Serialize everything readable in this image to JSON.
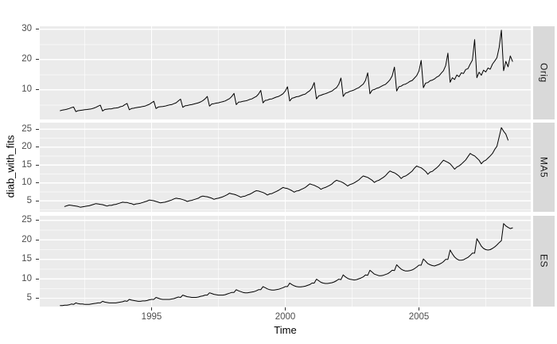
{
  "colors": {
    "background": "#FFFFFF",
    "panel_bg": "#EBEBEB",
    "strip_bg": "#D9D9D9",
    "grid_major": "#FFFFFF",
    "grid_minor": "rgba(255,255,255,0.6)",
    "line": "#000000",
    "tick_text": "#4D4D4D",
    "title_text": "#000000",
    "strip_text": "#1A1A1A"
  },
  "chart_data": {
    "type": "line",
    "title": "",
    "xlabel": "Time",
    "ylabel": "diab_with_fits",
    "legend": "none",
    "grid": "on",
    "facet_layout": "rows",
    "x_start_year": 1991.5833,
    "points_per_year": 12,
    "x_axis": {
      "label": "Time",
      "ticks": [
        1995,
        2000,
        2005
      ],
      "minor_ticks": [
        1992.5,
        1997.5,
        2002.5,
        2007.5
      ],
      "lim": [
        1990.82,
        2009.18
      ]
    },
    "facets": [
      {
        "label": "Orig",
        "y_ticks": [
          10,
          20,
          30
        ],
        "y_minor": [
          5,
          15,
          25
        ],
        "ylim": [
          0.2,
          31.0
        ],
        "offset_months": 0,
        "values": [
          3.1,
          3.3,
          3.4,
          3.6,
          3.8,
          4.1,
          4.3,
          2.8,
          3.1,
          3.2,
          3.3,
          3.4,
          3.5,
          3.6,
          3.7,
          3.9,
          4.2,
          4.6,
          4.9,
          3.0,
          3.5,
          3.6,
          3.7,
          3.7,
          3.9,
          4.0,
          4.1,
          4.4,
          4.6,
          5.1,
          5.5,
          3.4,
          3.8,
          3.9,
          4.1,
          4.2,
          4.3,
          4.5,
          4.6,
          4.9,
          5.2,
          5.7,
          6.2,
          3.8,
          4.3,
          4.4,
          4.5,
          4.6,
          4.8,
          5.0,
          5.1,
          5.4,
          5.7,
          6.3,
          6.9,
          4.2,
          4.7,
          4.8,
          5.0,
          5.1,
          5.3,
          5.5,
          5.7,
          6.0,
          6.4,
          7.0,
          7.8,
          4.6,
          5.3,
          5.4,
          5.6,
          5.7,
          5.9,
          6.1,
          6.3,
          6.7,
          7.1,
          7.8,
          8.8,
          5.1,
          5.9,
          6.0,
          6.2,
          6.3,
          6.5,
          6.8,
          7.0,
          7.4,
          7.8,
          8.6,
          9.8,
          5.7,
          6.5,
          6.6,
          6.9,
          7.0,
          7.3,
          7.6,
          7.8,
          8.2,
          8.7,
          9.6,
          11.0,
          6.3,
          7.2,
          7.4,
          7.7,
          7.8,
          8.1,
          8.4,
          8.6,
          9.2,
          9.7,
          10.6,
          12.4,
          7.0,
          8.0,
          8.2,
          8.5,
          8.7,
          9.0,
          9.3,
          9.6,
          10.2,
          10.7,
          11.8,
          13.9,
          7.8,
          8.9,
          9.1,
          9.5,
          9.7,
          10.0,
          10.4,
          10.7,
          11.3,
          11.9,
          13.1,
          15.6,
          8.7,
          9.9,
          10.1,
          10.5,
          10.7,
          11.1,
          11.5,
          11.8,
          12.5,
          13.3,
          14.6,
          17.5,
          9.6,
          11.0,
          11.2,
          11.7,
          11.9,
          12.3,
          12.8,
          13.1,
          13.9,
          14.7,
          16.2,
          19.7,
          10.7,
          12.2,
          12.4,
          13.0,
          13.2,
          13.6,
          14.2,
          14.6,
          15.5,
          16.3,
          18.0,
          22.1,
          12.5,
          14.0,
          13.4,
          14.9,
          14.3,
          15.6,
          15.4,
          16.7,
          17.0,
          18.5,
          19.8,
          26.6,
          14.0,
          15.8,
          14.8,
          16.5,
          15.9,
          17.2,
          16.8,
          18.5,
          19.5,
          20.6,
          24.0,
          29.7,
          16.3,
          19.4,
          17.6,
          21.2,
          19.4
        ]
      },
      {
        "label": "MA5",
        "y_ticks": [
          5,
          10,
          15,
          20,
          25
        ],
        "y_minor": [
          2.5,
          7.5,
          12.5,
          17.5,
          22.5
        ],
        "ylim": [
          1.9,
          26.8
        ],
        "offset_months": 2,
        "values": [
          3.4,
          3.6,
          3.8,
          3.7,
          3.6,
          3.5,
          3.4,
          3.2,
          3.3,
          3.4,
          3.5,
          3.6,
          3.8,
          4.0,
          4.2,
          4.1,
          4.0,
          3.9,
          3.7,
          3.5,
          3.7,
          3.7,
          3.9,
          4.0,
          4.2,
          4.4,
          4.6,
          4.5,
          4.5,
          4.3,
          4.2,
          3.9,
          4.1,
          4.2,
          4.3,
          4.5,
          4.7,
          4.9,
          5.2,
          5.1,
          5.0,
          4.8,
          4.6,
          4.4,
          4.5,
          4.6,
          4.8,
          5.0,
          5.2,
          5.5,
          5.7,
          5.6,
          5.5,
          5.3,
          5.1,
          4.8,
          5.0,
          5.1,
          5.3,
          5.5,
          5.7,
          6.1,
          6.3,
          6.2,
          6.1,
          5.9,
          5.7,
          5.4,
          5.6,
          5.7,
          5.9,
          6.1,
          6.4,
          6.7,
          7.1,
          6.9,
          6.8,
          6.6,
          6.3,
          6.0,
          6.2,
          6.3,
          6.6,
          6.8,
          7.1,
          7.5,
          7.8,
          7.7,
          7.5,
          7.3,
          7.0,
          6.6,
          6.9,
          7.0,
          7.3,
          7.6,
          7.9,
          8.3,
          8.7,
          8.5,
          8.4,
          8.1,
          7.8,
          7.4,
          7.7,
          7.8,
          8.1,
          8.4,
          8.7,
          9.2,
          9.7,
          9.5,
          9.3,
          9.0,
          8.7,
          8.2,
          8.5,
          8.7,
          9.0,
          9.3,
          9.7,
          10.3,
          10.7,
          10.5,
          10.3,
          10.0,
          9.6,
          9.1,
          9.5,
          9.7,
          10.0,
          10.4,
          10.8,
          11.4,
          11.9,
          11.7,
          11.5,
          11.1,
          10.7,
          10.1,
          10.5,
          10.7,
          11.1,
          11.5,
          12.0,
          12.7,
          13.3,
          13.0,
          12.8,
          12.4,
          11.9,
          11.2,
          11.7,
          11.9,
          12.3,
          12.8,
          13.3,
          14.1,
          14.7,
          14.4,
          14.2,
          13.7,
          13.2,
          12.4,
          13.0,
          13.2,
          13.7,
          14.2,
          14.8,
          15.6,
          16.3,
          16.0,
          15.7,
          15.3,
          14.6,
          13.8,
          14.4,
          14.7,
          15.2,
          15.8,
          16.4,
          17.3,
          18.2,
          17.8,
          17.5,
          16.9,
          16.3,
          15.3,
          16.0,
          16.3,
          16.9,
          17.5,
          18.2,
          19.3,
          20.2,
          22.8,
          25.4,
          24.4,
          23.6,
          21.9
        ]
      },
      {
        "label": "ES",
        "y_ticks": [
          5,
          10,
          15,
          20,
          25
        ],
        "y_minor": [
          7.5,
          12.5,
          17.5,
          22.5
        ],
        "ylim": [
          2.85,
          26.2
        ],
        "offset_months": 0,
        "values": [
          3.1,
          3.1,
          3.2,
          3.2,
          3.3,
          3.5,
          3.4,
          3.8,
          3.6,
          3.5,
          3.5,
          3.4,
          3.4,
          3.4,
          3.5,
          3.6,
          3.7,
          3.8,
          3.8,
          4.2,
          4.0,
          3.9,
          3.8,
          3.8,
          3.8,
          3.8,
          3.9,
          4.0,
          4.1,
          4.3,
          4.2,
          4.7,
          4.5,
          4.4,
          4.3,
          4.2,
          4.2,
          4.3,
          4.3,
          4.4,
          4.6,
          4.7,
          4.7,
          5.2,
          5.0,
          4.8,
          4.7,
          4.7,
          4.7,
          4.7,
          4.8,
          4.9,
          5.1,
          5.3,
          5.2,
          5.8,
          5.6,
          5.4,
          5.3,
          5.2,
          5.2,
          5.2,
          5.3,
          5.5,
          5.6,
          5.8,
          5.8,
          6.4,
          6.2,
          6.0,
          5.9,
          5.8,
          5.8,
          5.8,
          5.9,
          6.1,
          6.3,
          6.5,
          6.5,
          7.2,
          6.9,
          6.7,
          6.5,
          6.4,
          6.4,
          6.5,
          6.6,
          6.7,
          6.9,
          7.2,
          7.2,
          8.0,
          7.7,
          7.4,
          7.2,
          7.1,
          7.1,
          7.2,
          7.3,
          7.5,
          7.7,
          8.0,
          8.0,
          8.9,
          8.5,
          8.2,
          8.0,
          7.9,
          7.9,
          8.0,
          8.1,
          8.3,
          8.5,
          8.9,
          8.9,
          9.9,
          9.5,
          9.1,
          8.9,
          8.8,
          8.8,
          8.9,
          9.0,
          9.2,
          9.5,
          9.9,
          9.8,
          11.0,
          10.5,
          10.1,
          9.9,
          9.8,
          9.7,
          9.8,
          10.0,
          10.2,
          10.5,
          11.0,
          10.9,
          12.2,
          11.7,
          11.2,
          11.0,
          10.8,
          10.8,
          10.9,
          11.1,
          11.3,
          11.7,
          12.2,
          12.1,
          13.6,
          13.0,
          12.5,
          12.2,
          12.0,
          12.0,
          12.1,
          12.3,
          12.6,
          13.0,
          13.5,
          13.5,
          15.1,
          14.5,
          13.9,
          13.6,
          13.4,
          13.3,
          13.5,
          13.7,
          14.0,
          14.4,
          15.0,
          15.0,
          17.4,
          16.4,
          15.6,
          15.1,
          14.8,
          14.8,
          14.9,
          15.2,
          15.5,
          16.0,
          16.6,
          16.6,
          20.3,
          19.4,
          18.4,
          17.8,
          17.5,
          17.4,
          17.5,
          17.8,
          18.2,
          18.7,
          19.3,
          19.8,
          24.2,
          23.6,
          23.2,
          22.9,
          23.1
        ]
      }
    ]
  }
}
